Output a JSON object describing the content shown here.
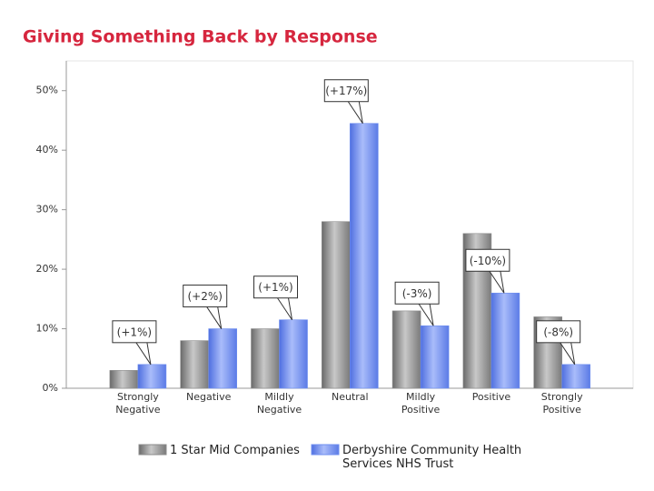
{
  "chart_data": {
    "type": "bar",
    "title": "Giving Something Back by Response",
    "categories": [
      "Strongly Negative",
      "Negative",
      "Mildly Negative",
      "Neutral",
      "Mildly Positive",
      "Positive",
      "Strongly Positive"
    ],
    "series": [
      {
        "name": "1 Star Mid Companies",
        "color": "#8c8c8c",
        "values": [
          3,
          8,
          10,
          28,
          13,
          26,
          12
        ]
      },
      {
        "name": "Derbyshire Community Health Services NHS Trust",
        "color": "#6f8ff0",
        "values": [
          4,
          10,
          11.5,
          44.5,
          10.5,
          16,
          4
        ]
      }
    ],
    "annotations": [
      "(+1%)",
      "(+2%)",
      "(+1%)",
      "(+17%)",
      "(-3%)",
      "(-10%)",
      "(-8%)"
    ],
    "ylim": [
      0,
      55
    ],
    "yticks": [
      {
        "value": 0,
        "label": "0%"
      },
      {
        "value": 10,
        "label": "10%"
      },
      {
        "value": 20,
        "label": "20%"
      },
      {
        "value": 30,
        "label": "30%"
      },
      {
        "value": 40,
        "label": "40%"
      },
      {
        "value": 50,
        "label": "50%"
      }
    ],
    "grid": false
  }
}
